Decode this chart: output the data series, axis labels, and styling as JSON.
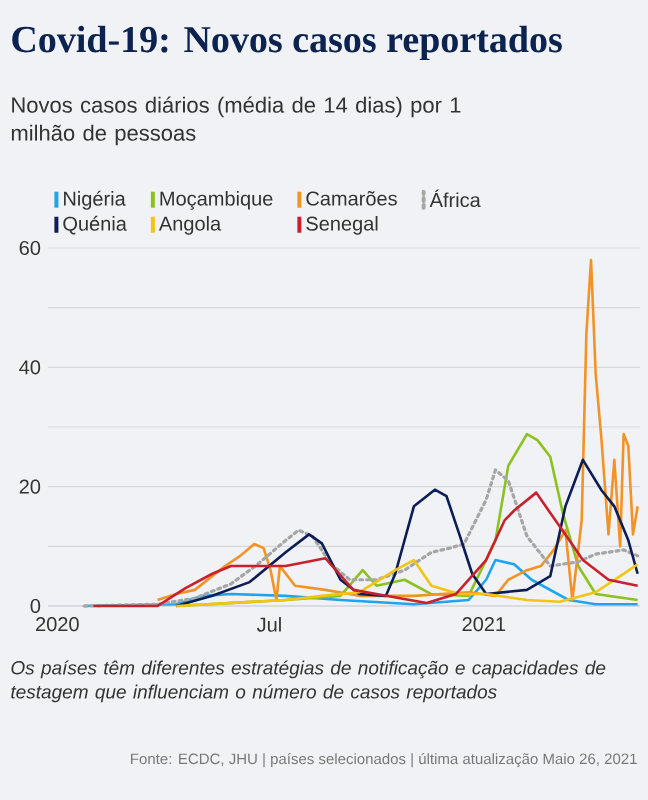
{
  "chart_data": {
    "type": "line",
    "title": "Covid-19: Novos casos reportados",
    "subtitle": "Novos casos diários (média de 14 dias) por 1 milhão de pessoas",
    "annotations": [
      "Os países têm diferentes estratégias de notificação e capacidades de testagem que influenciam o número de casos reportados",
      "Fonte: ECDC, JHU | países selecionados | última atualização Maio 26, 2021"
    ],
    "xlim": [
      "2019-12-24",
      "2021-05-15"
    ],
    "xticks": [
      {
        "value": "2020-01-01",
        "label": "2020"
      },
      {
        "value": "2020-07-01",
        "label": "Jul"
      },
      {
        "value": "2021-01-01",
        "label": "2021"
      }
    ],
    "ylim": [
      0,
      60
    ],
    "yticks": [
      0,
      {
        "value": 10,
        "label": null
      },
      20,
      {
        "value": 30,
        "label": null
      },
      40,
      {
        "value": 50,
        "label": null
      },
      60
    ],
    "grid": "y",
    "legend": "top",
    "marker": "none",
    "series": [
      {
        "name": "Nigéria",
        "color": "#1fa5f0",
        "x": [
          "2020-01-24",
          "2020-04-12",
          "2020-05-05",
          "2020-05-29",
          "2020-07-15",
          "2020-08-31",
          "2020-11-02",
          "2020-12-19",
          "2021-01-03",
          "2021-01-11",
          "2021-01-27",
          "2021-02-11",
          "2021-03-15",
          "2021-04-07",
          "2021-05-13"
        ],
        "values": [
          0,
          0.3,
          1.7,
          2,
          1.7,
          1,
          0.3,
          1,
          4.4,
          7.7,
          7,
          4.4,
          1,
          0.3,
          0.3
        ]
      },
      {
        "name": "Moçambique",
        "color": "#8cc21f",
        "x": [
          "2020-04-12",
          "2020-07-15",
          "2020-08-31",
          "2020-09-19",
          "2020-10-01",
          "2020-10-25",
          "2020-11-17",
          "2020-12-19",
          "2021-01-11",
          "2021-01-22",
          "2021-02-07",
          "2021-02-16",
          "2021-02-27",
          "2021-03-10",
          "2021-03-23",
          "2021-04-07",
          "2021-05-13"
        ],
        "values": [
          0,
          1,
          1.7,
          6,
          3.4,
          4.4,
          2,
          1.7,
          11,
          23.5,
          28.8,
          27.8,
          25,
          15.4,
          6.7,
          2,
          1
        ]
      },
      {
        "name": "Camarões",
        "color": "#f39325",
        "x": [
          "2020-03-27",
          "2020-04-12",
          "2020-04-28",
          "2020-05-24",
          "2020-06-06",
          "2020-06-18",
          "2020-06-26",
          "2020-07-02",
          "2020-07-07",
          "2020-07-10",
          "2020-07-23",
          "2020-08-18",
          "2020-09-16",
          "2020-11-02",
          "2020-12-19",
          "2021-01-11",
          "2021-01-22",
          "2021-02-07",
          "2021-02-19",
          "2021-03-02",
          "2021-03-12",
          "2021-03-18",
          "2021-03-26",
          "2021-03-30",
          "2021-04-03",
          "2021-04-07",
          "2021-04-12",
          "2021-04-18",
          "2021-04-23",
          "2021-04-28",
          "2021-05-01",
          "2021-05-05",
          "2021-05-09",
          "2021-05-13"
        ],
        "values": [
          1,
          2,
          2.7,
          6.7,
          8.4,
          10.4,
          9.7,
          6,
          1,
          6.7,
          3.4,
          2.7,
          1.7,
          1.7,
          2.3,
          1.7,
          4.4,
          6,
          6.7,
          9.4,
          12.7,
          1,
          14.4,
          45.6,
          58,
          38.9,
          27.8,
          12,
          24.5,
          10,
          28.8,
          26.8,
          12,
          16.7
        ]
      },
      {
        "name": "África",
        "color": "#a6a6a6",
        "line_style": "dotted",
        "x": [
          "2020-01-24",
          "2020-03-27",
          "2020-04-28",
          "2020-05-29",
          "2020-06-21",
          "2020-07-15",
          "2020-07-26",
          "2020-08-07",
          "2020-08-23",
          "2020-09-08",
          "2020-10-01",
          "2020-10-25",
          "2020-11-17",
          "2020-12-03",
          "2020-12-15",
          "2021-01-03",
          "2021-01-11",
          "2021-01-22",
          "2021-02-07",
          "2021-02-27",
          "2021-03-23",
          "2021-04-07",
          "2021-05-01",
          "2021-05-13"
        ],
        "values": [
          0,
          0.3,
          1.3,
          3.7,
          7,
          11,
          12.7,
          11.7,
          7,
          4.4,
          4.4,
          6,
          9,
          9.7,
          10.4,
          17.8,
          22.8,
          21,
          11.7,
          6.7,
          7.4,
          8.7,
          9.4,
          8.4
        ]
      },
      {
        "name": "Quénia",
        "color": "#0c1e55",
        "x": [
          "2020-04-12",
          "2020-05-13",
          "2020-06-14",
          "2020-07-15",
          "2020-08-04",
          "2020-08-15",
          "2020-08-31",
          "2020-09-16",
          "2020-10-09",
          "2020-10-17",
          "2020-11-02",
          "2020-11-20",
          "2020-11-30",
          "2020-12-11",
          "2020-12-22",
          "2021-01-03",
          "2021-02-07",
          "2021-02-27",
          "2021-03-12",
          "2021-03-27",
          "2021-04-12",
          "2021-04-23",
          "2021-05-05",
          "2021-05-13"
        ],
        "values": [
          0,
          1.7,
          4,
          9,
          12,
          10.5,
          4.4,
          2,
          1.7,
          5.4,
          16.7,
          19.5,
          18.4,
          12,
          5.4,
          2,
          2.7,
          5,
          16.7,
          24.5,
          19.4,
          16.7,
          11,
          5.4
        ]
      },
      {
        "name": "Angola",
        "color": "#f2c413",
        "x": [
          "2020-04-12",
          "2020-07-15",
          "2020-08-15",
          "2020-09-16",
          "2020-10-17",
          "2020-11-02",
          "2020-11-17",
          "2020-12-11",
          "2021-01-03",
          "2021-02-07",
          "2021-03-07",
          "2021-04-07",
          "2021-04-28",
          "2021-05-13"
        ],
        "values": [
          0,
          1,
          1.7,
          2.3,
          6,
          7.7,
          3.4,
          2,
          2,
          1,
          0.7,
          2.3,
          5,
          7
        ]
      },
      {
        "name": "Senegal",
        "color": "#c8202d",
        "x": [
          "2020-02-01",
          "2020-03-27",
          "2020-04-20",
          "2020-05-13",
          "2020-05-29",
          "2020-07-15",
          "2020-08-18",
          "2020-09-11",
          "2020-10-09",
          "2020-11-13",
          "2020-12-08",
          "2021-01-03",
          "2021-01-19",
          "2021-01-27",
          "2021-02-15",
          "2021-02-22",
          "2021-03-12",
          "2021-03-27",
          "2021-04-18",
          "2021-05-13"
        ],
        "values": [
          0,
          0,
          3,
          5.4,
          6.7,
          6.7,
          8,
          2.7,
          1.7,
          0.5,
          2,
          7.7,
          14.4,
          16,
          19,
          17,
          12,
          7.7,
          4.4,
          3.4
        ]
      }
    ]
  }
}
